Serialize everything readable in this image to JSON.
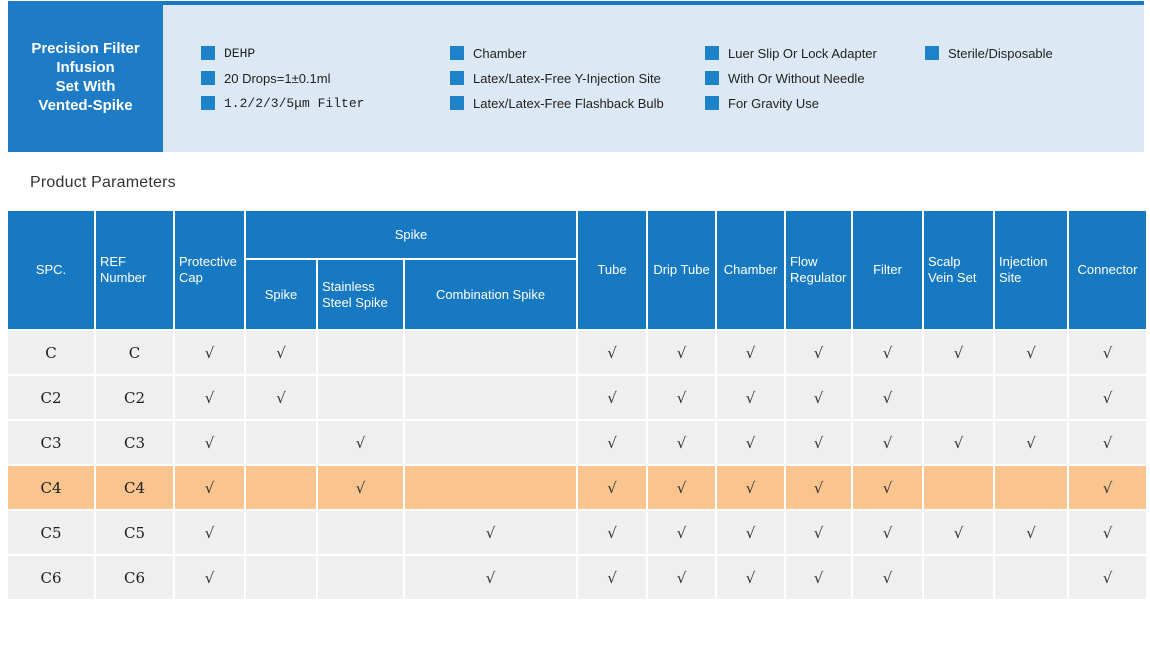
{
  "colors": {
    "band_border_blue": "#1878C2",
    "title_box_blue": "#1D7CC5",
    "banner_bg": "#DCE9F4",
    "bullet_blue": "#1E82C8",
    "table_header_bg": "#1879C3",
    "row_bg": "#EFEFEF",
    "highlight_row_bg": "#F9C48E",
    "check_color": "#333333"
  },
  "banner": {
    "title": "Precision Filter\nInfusion\nSet With\nVented-Spike",
    "feature_columns": [
      [
        {
          "label": "DEHP",
          "mono": true
        },
        {
          "label": "20 Drops=1±0.1ml",
          "mono": false
        },
        {
          "label": "1.2/2/3/5μm Filter",
          "mono": true
        }
      ],
      [
        {
          "label": "Chamber",
          "mono": false
        },
        {
          "label": "Latex/Latex-Free Y-Injection Site",
          "mono": false
        },
        {
          "label": "Latex/Latex-Free Flashback Bulb",
          "mono": false
        }
      ],
      [
        {
          "label": "Luer Slip Or Lock Adapter",
          "mono": false
        },
        {
          "label": "With Or Without Needle",
          "mono": false
        },
        {
          "label": "For Gravity Use",
          "mono": false
        }
      ],
      [
        {
          "label": "Sterile/Disposable",
          "mono": false
        }
      ]
    ]
  },
  "section": {
    "title": "Product Parameters"
  },
  "table": {
    "check_glyph": "√",
    "header": [
      {
        "label": "SPC."
      },
      {
        "label": "REF Number"
      },
      {
        "label": "Protective Cap"
      },
      {
        "group": "Spike",
        "children": [
          "Spike",
          "Stainless Steel Spike",
          "Combination Spike"
        ]
      },
      {
        "label": "Tube"
      },
      {
        "label": "Drip Tube"
      },
      {
        "label": "Chamber"
      },
      {
        "label": "Flow Regulator"
      },
      {
        "label": "Filter"
      },
      {
        "label": "Scalp Vein Set"
      },
      {
        "label": "Injection Site"
      },
      {
        "label": "Connector"
      }
    ],
    "check_columns": [
      "Protective Cap",
      "Spike",
      "Stainless Steel Spike",
      "Combination Spike",
      "Tube",
      "Drip Tube",
      "Chamber",
      "Flow Regulator",
      "Filter",
      "Scalp Vein Set",
      "Injection Site",
      "Connector"
    ],
    "rows": [
      {
        "spc": "C",
        "ref": "C",
        "highlight": false,
        "checks": [
          1,
          1,
          0,
          0,
          1,
          1,
          1,
          1,
          1,
          1,
          1,
          1
        ]
      },
      {
        "spc": "C2",
        "ref": "C2",
        "highlight": false,
        "checks": [
          1,
          1,
          0,
          0,
          1,
          1,
          1,
          1,
          1,
          0,
          0,
          1
        ]
      },
      {
        "spc": "C3",
        "ref": "C3",
        "highlight": false,
        "checks": [
          1,
          0,
          1,
          0,
          1,
          1,
          1,
          1,
          1,
          1,
          1,
          1
        ]
      },
      {
        "spc": "C4",
        "ref": "C4",
        "highlight": true,
        "checks": [
          1,
          0,
          1,
          0,
          1,
          1,
          1,
          1,
          1,
          0,
          0,
          1
        ]
      },
      {
        "spc": "C5",
        "ref": "C5",
        "highlight": false,
        "checks": [
          1,
          0,
          0,
          1,
          1,
          1,
          1,
          1,
          1,
          1,
          1,
          1
        ]
      },
      {
        "spc": "C6",
        "ref": "C6",
        "highlight": false,
        "checks": [
          1,
          0,
          0,
          1,
          1,
          1,
          1,
          1,
          1,
          0,
          0,
          1
        ]
      }
    ]
  }
}
